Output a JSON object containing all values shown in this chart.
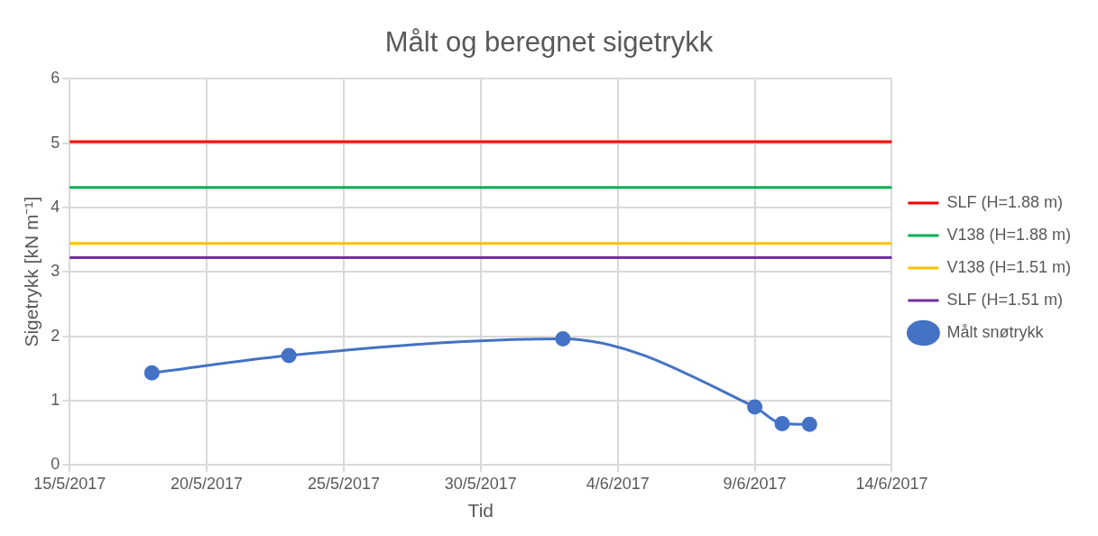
{
  "chart_data": {
    "type": "line",
    "title": "Målt og beregnet sigetrykk",
    "xlabel": "Tid",
    "ylabel": "Sigetrykk [kN m⁻¹]",
    "xlim": [
      "2017-05-15",
      "2017-06-14"
    ],
    "xticks": [
      {
        "value": "2017-05-15",
        "label": "15/5/2017"
      },
      {
        "value": "2017-05-20",
        "label": "20/5/2017"
      },
      {
        "value": "2017-05-25",
        "label": "25/5/2017"
      },
      {
        "value": "2017-05-30",
        "label": "30/5/2017"
      },
      {
        "value": "2017-06-04",
        "label": "4/6/2017"
      },
      {
        "value": "2017-06-09",
        "label": "9/6/2017"
      },
      {
        "value": "2017-06-14",
        "label": "14/6/2017"
      }
    ],
    "ylim": [
      0,
      6
    ],
    "yticks": [
      0,
      1,
      2,
      3,
      4,
      5,
      6
    ],
    "grid": true,
    "legend": "right",
    "series": [
      {
        "name": "SLF (H=1.88 m)",
        "color": "#ff0000",
        "x": [
          "2017-05-15",
          "2017-06-14"
        ],
        "values": [
          5.02,
          5.02
        ],
        "marker": "none"
      },
      {
        "name": "V138 (H=1.88 m)",
        "color": "#00b050",
        "x": [
          "2017-05-15",
          "2017-06-14"
        ],
        "values": [
          4.31,
          4.31
        ],
        "marker": "none"
      },
      {
        "name": "V138 (H=1.51 m)",
        "color": "#ffc000",
        "x": [
          "2017-05-15",
          "2017-06-14"
        ],
        "values": [
          3.44,
          3.44
        ],
        "marker": "none"
      },
      {
        "name": "SLF (H=1.51 m)",
        "color": "#7030a0",
        "x": [
          "2017-05-15",
          "2017-06-14"
        ],
        "values": [
          3.22,
          3.22
        ],
        "marker": "none"
      },
      {
        "name": "Målt snøtrykk",
        "color": "#4472c4",
        "x": [
          "2017-05-18",
          "2017-05-23",
          "2017-06-02",
          "2017-06-09",
          "2017-06-10",
          "2017-06-11"
        ],
        "values": [
          1.43,
          1.7,
          1.96,
          0.9,
          0.64,
          0.63
        ],
        "marker": "circle"
      }
    ]
  }
}
